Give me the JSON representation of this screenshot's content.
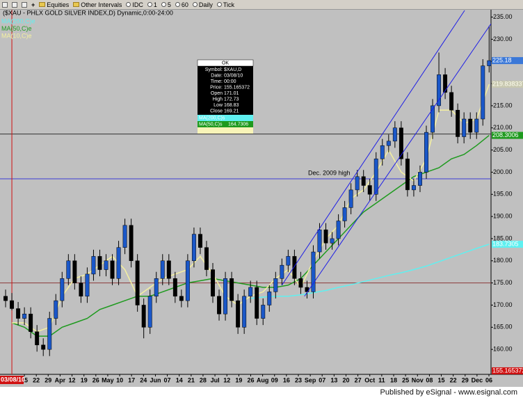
{
  "toolbar": [
    "Equities",
    "Other Intervals",
    "IDC",
    "1",
    "5",
    "60",
    "Daily",
    "Tick"
  ],
  "chart_data": {
    "type": "candlestick",
    "title": "($XAU - PHLX GOLD SILVER INDEX,D) Dynamic,0:00-24:00",
    "up_color": "#1a57c8",
    "down_color": "#000000",
    "xlim": [
      -0.89,
      77.3
    ],
    "ylim": [
      155,
      236.5
    ],
    "x": [
      0,
      1,
      2,
      3,
      4,
      5,
      6,
      7,
      8,
      9,
      10,
      11,
      12,
      13,
      14,
      15,
      16,
      17,
      18,
      19,
      20,
      21,
      22,
      23,
      24,
      25,
      26,
      27,
      28,
      29,
      30,
      31,
      32,
      33,
      34,
      35,
      36,
      37,
      38,
      39,
      40,
      41,
      42,
      43,
      44,
      45,
      46,
      47,
      48,
      49,
      50,
      51,
      52,
      53,
      54,
      55,
      56,
      57,
      58,
      59,
      60,
      61,
      62,
      63,
      64,
      65,
      66,
      67,
      68,
      69,
      70,
      71,
      72,
      73,
      74,
      75,
      76,
      77
    ],
    "open": [
      172,
      171.01,
      169.21,
      167,
      168,
      164,
      161,
      160,
      167,
      171,
      176,
      180,
      175,
      172,
      177,
      181,
      178,
      180,
      176,
      183,
      188,
      180,
      170,
      165,
      172,
      176,
      180,
      176,
      172,
      171,
      180,
      186,
      183,
      178,
      172,
      168,
      176,
      171,
      165,
      172,
      174,
      167,
      170,
      173,
      176,
      179,
      181,
      176,
      174,
      173,
      182,
      187,
      184,
      185,
      189,
      192,
      196,
      199,
      197,
      195,
      203,
      206,
      207,
      210,
      203,
      196,
      197,
      200,
      209,
      215,
      222,
      218,
      214,
      208,
      212,
      209,
      212,
      224
    ],
    "high": [
      173.5,
      172.73,
      170.7,
      169.5,
      169.5,
      165.5,
      162.5,
      168.5,
      172.5,
      177.5,
      181.5,
      181.5,
      176.5,
      178.5,
      182.5,
      182.5,
      181.5,
      181.5,
      184.5,
      189.5,
      189.5,
      181.5,
      171.5,
      173.5,
      177.5,
      181.5,
      181.5,
      177.5,
      173.5,
      181.5,
      187.5,
      187.5,
      184.5,
      179.5,
      173.5,
      177.5,
      177.5,
      172.5,
      173.5,
      175.5,
      175.5,
      171.5,
      174.5,
      177.5,
      180.5,
      182.5,
      182.5,
      177.5,
      175.5,
      183.5,
      188.5,
      188.5,
      186.5,
      190.5,
      193.5,
      197.5,
      200.5,
      200.5,
      198.5,
      204.5,
      207.5,
      208.5,
      211.5,
      211.5,
      204.5,
      198.5,
      201.5,
      210.5,
      216.5,
      227,
      223.5,
      219.5,
      215.5,
      213.5,
      213.5,
      213.5,
      225.5,
      233
    ],
    "low": [
      169.5,
      168.83,
      165.5,
      165.5,
      162.5,
      159.5,
      158.5,
      158.5,
      165.5,
      169.5,
      174.5,
      173.5,
      170.5,
      170.5,
      175.5,
      176.5,
      176.5,
      174.5,
      174.5,
      181.5,
      178.5,
      168.5,
      162.5,
      163.5,
      170.5,
      174.5,
      174.5,
      170.5,
      169.5,
      169.5,
      178.5,
      181.5,
      176.5,
      170.5,
      166.5,
      166.5,
      169.5,
      163.5,
      163.5,
      170.5,
      165.5,
      165.5,
      168.5,
      171.5,
      174.5,
      177.5,
      174.5,
      172.5,
      171.5,
      171.5,
      180.5,
      182.5,
      182.5,
      183.5,
      187.5,
      190.5,
      194.5,
      195.5,
      193.5,
      193.5,
      201.5,
      204.5,
      205.5,
      201.5,
      194.5,
      194.5,
      195.5,
      198.5,
      207.5,
      213.5,
      216.5,
      212.5,
      206.5,
      206.5,
      207.5,
      207.5,
      210.5,
      222.5
    ],
    "close": [
      171,
      169.21,
      167,
      168,
      164,
      161,
      160,
      167,
      171,
      176,
      180,
      175,
      172,
      177,
      181,
      178,
      180,
      176,
      183,
      188,
      180,
      170,
      165,
      172,
      176,
      180,
      176,
      172,
      171,
      180,
      186,
      183,
      178,
      172,
      168,
      176,
      171,
      165,
      172,
      174,
      167,
      170,
      173,
      176,
      179,
      181,
      176,
      174,
      173,
      182,
      187,
      184,
      185,
      189,
      192,
      196,
      199,
      197,
      195,
      203,
      206,
      207,
      210,
      203,
      196,
      197,
      200,
      209,
      215,
      222,
      218,
      214,
      208,
      212,
      209,
      212,
      224,
      225.18
    ],
    "last_label": {
      "value": 225.18,
      "label": "225.18",
      "color": "#3b78d8"
    },
    "lines": [
      {
        "name": "MA(200,C)e",
        "color": "#5ff0f0",
        "x": [
          1,
          3,
          5,
          7,
          9,
          11,
          13,
          15,
          17,
          19,
          21,
          23,
          25,
          27,
          29,
          31,
          33,
          35,
          37,
          39,
          41,
          43,
          45,
          47,
          49,
          51,
          53,
          55,
          57,
          59,
          61,
          63,
          65,
          67,
          69,
          71,
          73,
          75,
          77
        ],
        "values": [
          null,
          null,
          null,
          null,
          null,
          null,
          null,
          null,
          null,
          null,
          null,
          null,
          null,
          null,
          null,
          null,
          null,
          null,
          null,
          171.5,
          171.8,
          172,
          172,
          172.3,
          172.8,
          173.3,
          174,
          174.6,
          175.3,
          176,
          176.7,
          177.3,
          178,
          178.8,
          179.8,
          180.8,
          181.8,
          182.8,
          183.7305
        ],
        "last_label": {
          "value": 183.7305,
          "label": "183.7305"
        }
      },
      {
        "name": "MA(50,C)e",
        "color": "#1e9a1e",
        "x": [
          1,
          3,
          5,
          7,
          9,
          11,
          13,
          15,
          17,
          19,
          21,
          23,
          25,
          27,
          29,
          31,
          33,
          35,
          37,
          39,
          41,
          43,
          45,
          47,
          49,
          51,
          53,
          55,
          57,
          59,
          61,
          63,
          65,
          67,
          69,
          71,
          73,
          75,
          77
        ],
        "values": [
          166,
          165,
          163,
          163,
          165,
          166,
          167,
          169,
          170,
          171,
          172,
          172,
          173,
          174,
          175,
          175.5,
          176,
          175.5,
          175,
          174.5,
          174,
          174,
          174.5,
          176,
          179,
          182,
          185,
          188,
          191,
          193,
          195,
          197,
          199,
          200,
          201,
          203,
          204,
          206,
          208.3006
        ],
        "last_label": {
          "value": 208.3006,
          "label": "208.3006"
        }
      },
      {
        "name": "MA(10,C)e",
        "color": "#f4f0a0",
        "x": [
          1,
          3,
          5,
          7,
          9,
          11,
          13,
          15,
          17,
          19,
          21,
          23,
          25,
          27,
          29,
          31,
          33,
          35,
          37,
          39,
          41,
          43,
          45,
          47,
          49,
          51,
          53,
          55,
          57,
          59,
          61,
          63,
          65,
          67,
          69,
          71,
          73,
          75,
          77
        ],
        "values": [
          166,
          166,
          164,
          165,
          172,
          176,
          177,
          179,
          181,
          178,
          172,
          174,
          176,
          177,
          178,
          181,
          177,
          172,
          170,
          172,
          173,
          176,
          178,
          174,
          180,
          185,
          188,
          194,
          196,
          200,
          205,
          200,
          198,
          203,
          214,
          214,
          211,
          212,
          219.838337
        ],
        "last_label": {
          "value": 219.838337,
          "label": "219.838337"
        }
      }
    ],
    "hlines": [
      {
        "value": 208.6,
        "color": "#333333"
      },
      {
        "value": 198.5,
        "color": "#3b3bd6",
        "label": "Dec. 2009 high"
      },
      {
        "value": 175,
        "color": "#8b3a3a"
      }
    ],
    "trendlines": [
      {
        "x": [
          44,
          73.1
        ],
        "y": [
          174.5,
          236.5
        ],
        "color": "#1e1ee6"
      },
      {
        "x": [
          47.6,
          77.3
        ],
        "y": [
          172,
          233.5
        ],
        "color": "#1e1ee6"
      }
    ],
    "cursor": {
      "x": 1,
      "color": "#d01010",
      "date": "03/08/10",
      "price": {
        "value": 155.165372,
        "label": "155.165372"
      }
    },
    "yticks": [
      {
        "value": 160,
        "label": "160.00"
      },
      {
        "value": 165,
        "label": "165.00"
      },
      {
        "value": 170,
        "label": "170.00"
      },
      {
        "value": 175,
        "label": "175.00"
      },
      {
        "value": 180,
        "label": "180.00"
      },
      {
        "value": 185,
        "label": "185.00"
      },
      {
        "value": 190,
        "label": "190.00"
      },
      {
        "value": 195,
        "label": "195.00"
      },
      {
        "value": 200,
        "label": "200.00"
      },
      {
        "value": 205,
        "label": "205.00"
      },
      {
        "value": 210,
        "label": "210.00"
      },
      {
        "value": 215,
        "label": "215.00"
      },
      {
        "value": 220,
        "label": "220.00"
      },
      {
        "value": 225,
        "label": "225.00"
      },
      {
        "value": 230,
        "label": "230.00"
      },
      {
        "value": 235,
        "label": "235.00"
      }
    ],
    "xticks": [
      {
        "value": 2.99,
        "label": "15"
      },
      {
        "value": 4.89,
        "label": "22"
      },
      {
        "value": 6.78,
        "label": "29"
      },
      {
        "value": 8.68,
        "label": "Apr"
      },
      {
        "value": 10.58,
        "label": "12"
      },
      {
        "value": 12.48,
        "label": "19"
      },
      {
        "value": 14.37,
        "label": "26"
      },
      {
        "value": 16.27,
        "label": "May"
      },
      {
        "value": 18.17,
        "label": "10"
      },
      {
        "value": 20.06,
        "label": "17"
      },
      {
        "value": 21.96,
        "label": "24"
      },
      {
        "value": 23.86,
        "label": "Jun"
      },
      {
        "value": 25.75,
        "label": "07"
      },
      {
        "value": 27.65,
        "label": "14"
      },
      {
        "value": 29.55,
        "label": "21"
      },
      {
        "value": 31.44,
        "label": "28"
      },
      {
        "value": 33.34,
        "label": "Jul"
      },
      {
        "value": 35.24,
        "label": "12"
      },
      {
        "value": 37.14,
        "label": "19"
      },
      {
        "value": 39.03,
        "label": "26"
      },
      {
        "value": 40.93,
        "label": "Aug"
      },
      {
        "value": 42.83,
        "label": "09"
      },
      {
        "value": 44.72,
        "label": "16"
      },
      {
        "value": 46.62,
        "label": "23"
      },
      {
        "value": 48.52,
        "label": "Sep"
      },
      {
        "value": 50.41,
        "label": "07"
      },
      {
        "value": 52.31,
        "label": "13"
      },
      {
        "value": 54.21,
        "label": "20"
      },
      {
        "value": 56.1,
        "label": "27"
      },
      {
        "value": 58,
        "label": "Oct"
      },
      {
        "value": 59.9,
        "label": "11"
      },
      {
        "value": 61.8,
        "label": "18"
      },
      {
        "value": 63.69,
        "label": "25"
      },
      {
        "value": 65.59,
        "label": "Nov"
      },
      {
        "value": 67.49,
        "label": "08"
      },
      {
        "value": 69.38,
        "label": "15"
      },
      {
        "value": 71.28,
        "label": "22"
      },
      {
        "value": 73.18,
        "label": "29"
      },
      {
        "value": 75.07,
        "label": "Dec"
      },
      {
        "value": 76.97,
        "label": "06"
      }
    ]
  },
  "data_window": {
    "header": "OK",
    "rows": [
      [
        "Symbol:",
        "$XAU,D"
      ],
      [
        "Date:",
        "03/08/10"
      ],
      [
        "Time:",
        "00:00"
      ],
      [
        "Price:",
        "155.165372"
      ],
      [
        "Open",
        "171.01"
      ],
      [
        "High",
        "172.73"
      ],
      [
        "Low",
        "168.83"
      ],
      [
        "Close",
        "169.21"
      ]
    ],
    "ma_rows": [
      {
        "label": "MA(200,C)s",
        "value": "",
        "color": "#5ff0f0"
      },
      {
        "label": "MA(50,C)s",
        "value": "164.7306",
        "color": "#1e9a1e"
      }
    ]
  },
  "footer": "Published by eSignal - www.esignal.com"
}
